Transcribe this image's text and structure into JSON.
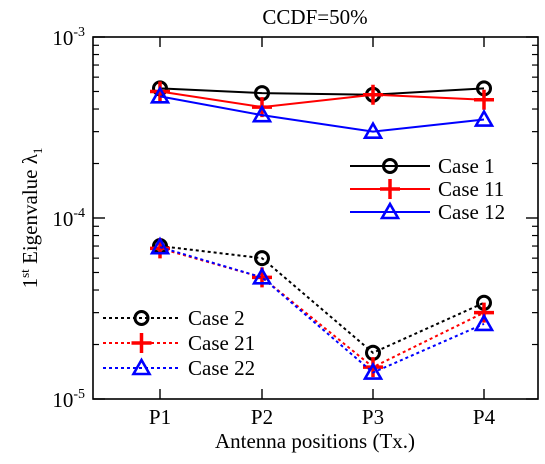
{
  "chart_data": {
    "type": "line",
    "title": "CCDF=50%",
    "xlabel": "Antenna positions (Tx.)",
    "ylabel": {
      "prefix": "1",
      "sup": "st",
      "main": " Eigenvalue ",
      "symbol": "λ",
      "sub": "1"
    },
    "yscale": "log",
    "ylim": [
      1e-05,
      0.001
    ],
    "y_ticks": [
      {
        "value": 1e-05,
        "base": "10",
        "exp": "-5"
      },
      {
        "value": 0.0001,
        "base": "10",
        "exp": "-4"
      },
      {
        "value": 0.001,
        "base": "10",
        "exp": "-3"
      }
    ],
    "categories": [
      "P1",
      "P2",
      "P3",
      "P4"
    ],
    "grid": false,
    "series": [
      {
        "name": "Case 1",
        "color": "#000000",
        "marker": "circle",
        "dash": "solid",
        "values": [
          0.00052,
          0.00049,
          0.00048,
          0.00052
        ]
      },
      {
        "name": "Case 11",
        "color": "#ff0000",
        "marker": "plus",
        "dash": "solid",
        "values": [
          0.0005,
          0.00041,
          0.00048,
          0.00045
        ]
      },
      {
        "name": "Case 12",
        "color": "#0000ff",
        "marker": "triangle",
        "dash": "solid",
        "values": [
          0.00047,
          0.00037,
          0.0003,
          0.00035
        ]
      },
      {
        "name": "Case 2",
        "color": "#000000",
        "marker": "circle",
        "dash": "dotted",
        "values": [
          7e-05,
          6e-05,
          1.8e-05,
          3.4e-05
        ]
      },
      {
        "name": "Case 21",
        "color": "#ff0000",
        "marker": "plus",
        "dash": "dotted",
        "values": [
          6.8e-05,
          4.7e-05,
          1.5e-05,
          3e-05
        ]
      },
      {
        "name": "Case 22",
        "color": "#0000ff",
        "marker": "triangle",
        "dash": "dotted",
        "values": [
          6.9e-05,
          4.7e-05,
          1.4e-05,
          2.6e-05
        ]
      }
    ],
    "legends": [
      {
        "placement": "right-middle",
        "entries": [
          0,
          1,
          2
        ]
      },
      {
        "placement": "bottom-left",
        "entries": [
          3,
          4,
          5
        ]
      }
    ]
  }
}
